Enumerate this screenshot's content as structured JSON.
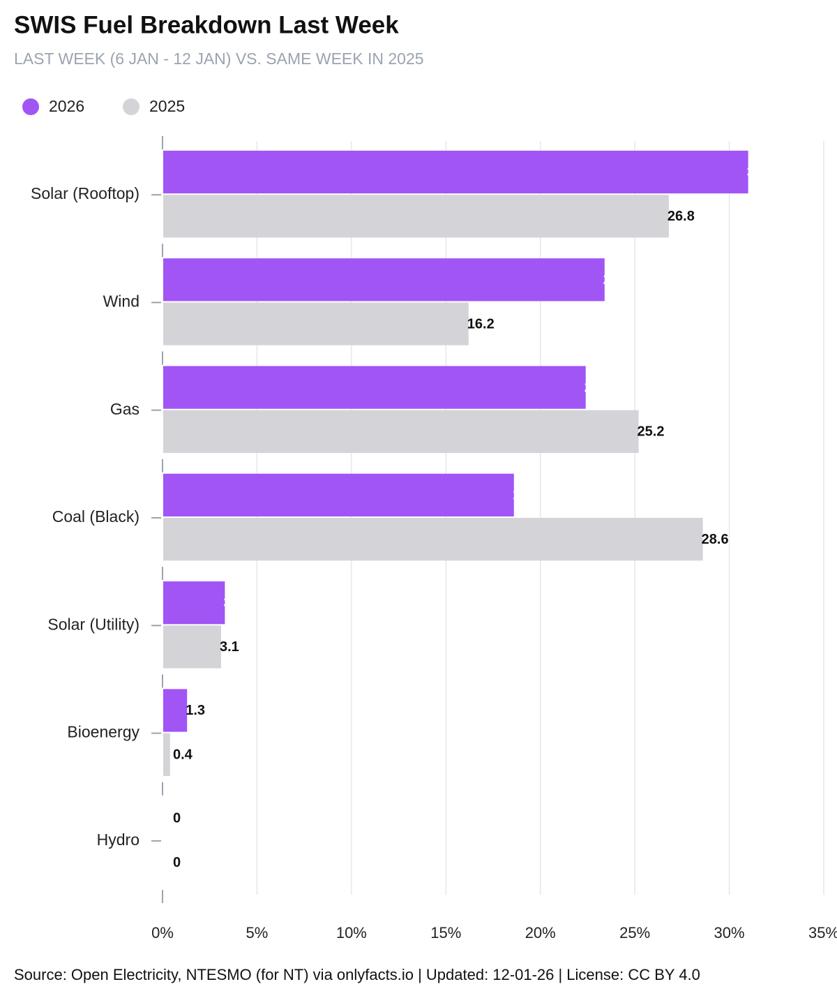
{
  "chart_data": {
    "type": "bar",
    "orientation": "horizontal",
    "title": "SWIS Fuel Breakdown Last Week",
    "subtitle": "LAST WEEK (6 JAN - 12 JAN) VS. SAME WEEK IN 2025",
    "source": "Source: Open Electricity, NTESMO (for NT) via onlyfacts.io | Updated: 12-01-26 | License: CC BY 4.0",
    "categories": [
      "Solar (Rooftop)",
      "Wind",
      "Gas",
      "Coal (Black)",
      "Solar (Utility)",
      "Bioenergy",
      "Hydro"
    ],
    "series": [
      {
        "name": "2026",
        "color": "#a155f5",
        "values": [
          31,
          23.4,
          22.4,
          18.6,
          3.3,
          1.3,
          0
        ]
      },
      {
        "name": "2025",
        "color": "#d4d4d8",
        "values": [
          26.8,
          16.2,
          25.2,
          28.6,
          3.1,
          0.4,
          0
        ]
      }
    ],
    "xlim": [
      0,
      35
    ],
    "xticks": [
      {
        "value": 0,
        "label": "0%"
      },
      {
        "value": 5,
        "label": "5%"
      },
      {
        "value": 10,
        "label": "10%"
      },
      {
        "value": 15,
        "label": "15%"
      },
      {
        "value": 20,
        "label": "20%"
      },
      {
        "value": 25,
        "label": "25%"
      },
      {
        "value": 30,
        "label": "30%"
      },
      {
        "value": 35,
        "label": "35%"
      }
    ],
    "grid": true,
    "legend": "top-left"
  }
}
